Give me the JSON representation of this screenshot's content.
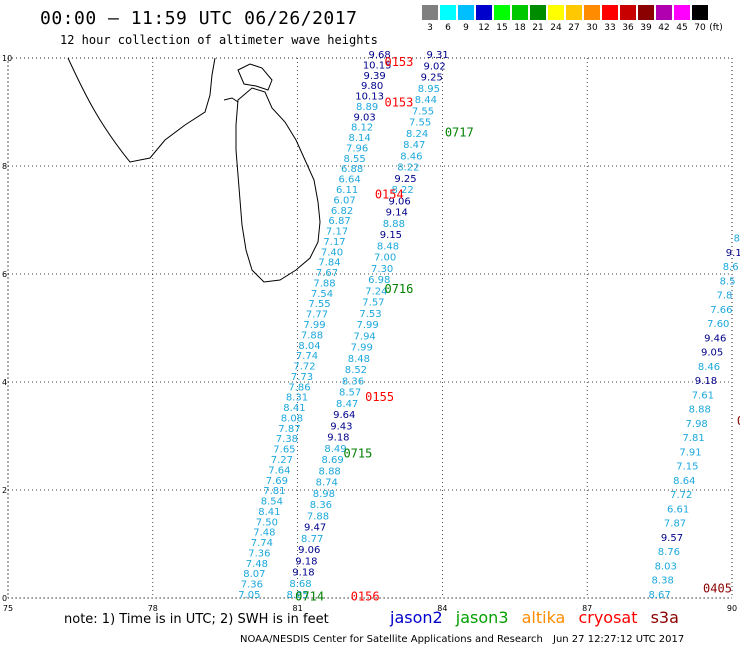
{
  "title": "00:00 – 11:59 UTC 06/26/2017",
  "subtitle": "12 hour collection of altimeter wave heights",
  "legend": {
    "unit": "(ft)",
    "entries": [
      {
        "label": "3",
        "color": "#808080"
      },
      {
        "label": "6",
        "color": "#00ffff"
      },
      {
        "label": "9",
        "color": "#00bfff"
      },
      {
        "label": "12",
        "color": "#0000cd"
      },
      {
        "label": "15",
        "color": "#00ff00"
      },
      {
        "label": "18",
        "color": "#00c800"
      },
      {
        "label": "21",
        "color": "#008c00"
      },
      {
        "label": "24",
        "color": "#ffff00"
      },
      {
        "label": "27",
        "color": "#ffc800"
      },
      {
        "label": "30",
        "color": "#ff8c00"
      },
      {
        "label": "33",
        "color": "#ff0000"
      },
      {
        "label": "36",
        "color": "#c80000"
      },
      {
        "label": "39",
        "color": "#8b0000"
      },
      {
        "label": "42",
        "color": "#b000b0"
      },
      {
        "label": "45",
        "color": "#ff00ff"
      },
      {
        "label": "70",
        "color": "#000000"
      }
    ]
  },
  "axes": {
    "lon_ticks": [
      "75",
      "78",
      "81",
      "84",
      "87",
      "90"
    ],
    "lat_ticks": [
      "0",
      "2",
      "4",
      "6",
      "8",
      "10"
    ]
  },
  "tracks": [
    {
      "lon_start": 80.0,
      "lat_start": 0.0,
      "lon_end": 82.7,
      "lat_end": 10.0,
      "rows": [
        {
          "t": "7.05",
          "c": "#1ca8dc",
          "lon": 80.2
        },
        {
          "t": "7.36",
          "c": "#1ca8dc",
          "lon": 80.2
        },
        {
          "t": "8.07",
          "c": "#1ca8dc",
          "lon": 80.2
        },
        {
          "t": "7.48",
          "c": "#1ca8dc",
          "lon": 80.2
        },
        {
          "t": "7.36",
          "c": "#1ca8dc",
          "lon": 80.2
        },
        {
          "t": "7.74",
          "c": "#1ca8dc",
          "lon": 80.2
        },
        {
          "t": "7.48",
          "c": "#1ca8dc",
          "lon": 80.2
        },
        {
          "t": "7.50",
          "c": "#1ca8dc",
          "lon": 80.2
        },
        {
          "t": "8.41",
          "c": "#1ca8dc",
          "lon": 80.2
        },
        {
          "t": "8.54",
          "c": "#1ca8dc",
          "lon": 80.2
        },
        {
          "t": "7.81",
          "c": "#1ca8dc",
          "lon": 80.2
        },
        {
          "t": "7.69",
          "c": "#1ca8dc",
          "lon": 80.2
        },
        {
          "t": "7.64",
          "c": "#1ca8dc",
          "lon": 80.2
        },
        {
          "t": "7.27",
          "c": "#1ca8dc",
          "lon": 80.2
        },
        {
          "t": "7.65",
          "c": "#1ca8dc",
          "lon": 80.2
        },
        {
          "t": "7.38",
          "c": "#1ca8dc",
          "lon": 80.2
        },
        {
          "t": "7.87",
          "c": "#1ca8dc",
          "lon": 80.2
        },
        {
          "t": "8.08",
          "c": "#1ca8dc",
          "lon": 80.2
        },
        {
          "t": "8.41",
          "c": "#1ca8dc",
          "lon": 80.2
        },
        {
          "t": "8.31",
          "c": "#1ca8dc",
          "lon": 80.2
        },
        {
          "t": "7.86",
          "c": "#1ca8dc",
          "lon": 80.2
        },
        {
          "t": "7.73",
          "c": "#1ca8dc",
          "lon": 80.2
        },
        {
          "t": "7.72",
          "c": "#1ca8dc",
          "lon": 80.2
        },
        {
          "t": "7.74",
          "c": "#1ca8dc",
          "lon": 80.2
        },
        {
          "t": "8.04",
          "c": "#1ca8dc",
          "lon": 80.2
        },
        {
          "t": "7.88",
          "c": "#1ca8dc",
          "lon": 80.2
        },
        {
          "t": "7.99",
          "c": "#1ca8dc",
          "lon": 80.2
        },
        {
          "t": "7.77",
          "c": "#1ca8dc",
          "lon": 80.2
        },
        {
          "t": "7.55",
          "c": "#1ca8dc",
          "lon": 80.2
        },
        {
          "t": "7.54",
          "c": "#1ca8dc",
          "lon": 80.2
        },
        {
          "t": "7.88",
          "c": "#1ca8dc",
          "lon": 80.2
        },
        {
          "t": "7.67",
          "c": "#1ca8dc",
          "lon": 80.2
        },
        {
          "t": "7.84",
          "c": "#1ca8dc",
          "lon": 80.2
        },
        {
          "t": "7.40",
          "c": "#1ca8dc",
          "lon": 80.2
        },
        {
          "t": "7.17",
          "c": "#1ca8dc",
          "lon": 80.2
        },
        {
          "t": "7.17",
          "c": "#1ca8dc",
          "lon": 80.2
        },
        {
          "t": "6.87",
          "c": "#1ca8dc",
          "lon": 80.2
        },
        {
          "t": "6.82",
          "c": "#1ca8dc",
          "lon": 80.2
        },
        {
          "t": "6.07",
          "c": "#1ca8dc",
          "lon": 80.2
        },
        {
          "t": "6.11",
          "c": "#1ca8dc",
          "lon": 80.2
        },
        {
          "t": "6.64",
          "c": "#1ca8dc",
          "lon": 80.2
        },
        {
          "t": "6.88",
          "c": "#1ca8dc",
          "lon": 80.2
        },
        {
          "t": "8.55",
          "c": "#1ca8dc",
          "lon": 80.2
        },
        {
          "t": "7.96",
          "c": "#1ca8dc",
          "lon": 80.2
        },
        {
          "t": "8.14",
          "c": "#1ca8dc",
          "lon": 80.2
        },
        {
          "t": "8.12",
          "c": "#1ca8dc",
          "lon": 80.2
        },
        {
          "t": "9.03",
          "c": "#00008b",
          "lon": 80.2
        },
        {
          "t": "8.89",
          "c": "#1ca8dc",
          "lon": 80.2
        },
        {
          "t": "10.13",
          "c": "#00008b",
          "lon": 80.2
        },
        {
          "t": "9.80",
          "c": "#00008b",
          "lon": 80.2
        },
        {
          "t": "9.39",
          "c": "#00008b",
          "lon": 80.2
        },
        {
          "t": "10.15",
          "c": "#00008b",
          "lon": 80.2
        },
        {
          "t": "9.68",
          "c": "#00008b",
          "lon": 80.2
        }
      ]
    },
    {
      "lon_start": 81.0,
      "lat_start": 0.0,
      "lon_end": 83.9,
      "lat_end": 10.0,
      "rows": [
        {
          "t": "8.85",
          "c": "#1ca8dc"
        },
        {
          "t": "8.68",
          "c": "#1ca8dc"
        },
        {
          "t": "9.18",
          "c": "#00008b"
        },
        {
          "t": "9.18",
          "c": "#00008b"
        },
        {
          "t": "9.06",
          "c": "#00008b"
        },
        {
          "t": "8.77",
          "c": "#1ca8dc"
        },
        {
          "t": "9.47",
          "c": "#00008b"
        },
        {
          "t": "7.88",
          "c": "#1ca8dc"
        },
        {
          "t": "8.36",
          "c": "#1ca8dc"
        },
        {
          "t": "8.98",
          "c": "#1ca8dc"
        },
        {
          "t": "8.74",
          "c": "#1ca8dc"
        },
        {
          "t": "8.88",
          "c": "#1ca8dc"
        },
        {
          "t": "8.69",
          "c": "#1ca8dc"
        },
        {
          "t": "8.49",
          "c": "#1ca8dc"
        },
        {
          "t": "9.18",
          "c": "#00008b"
        },
        {
          "t": "9.43",
          "c": "#00008b"
        },
        {
          "t": "9.64",
          "c": "#00008b"
        },
        {
          "t": "8.47",
          "c": "#1ca8dc"
        },
        {
          "t": "8.57",
          "c": "#1ca8dc"
        },
        {
          "t": "8.36",
          "c": "#1ca8dc"
        },
        {
          "t": "8.52",
          "c": "#1ca8dc"
        },
        {
          "t": "8.48",
          "c": "#1ca8dc"
        },
        {
          "t": "7.99",
          "c": "#1ca8dc"
        },
        {
          "t": "7.94",
          "c": "#1ca8dc"
        },
        {
          "t": "7.99",
          "c": "#1ca8dc"
        },
        {
          "t": "7.53",
          "c": "#1ca8dc"
        },
        {
          "t": "7.57",
          "c": "#1ca8dc"
        },
        {
          "t": "7.24",
          "c": "#1ca8dc"
        },
        {
          "t": "6.98",
          "c": "#1ca8dc"
        },
        {
          "t": "7.30",
          "c": "#1ca8dc"
        },
        {
          "t": "7.00",
          "c": "#1ca8dc"
        },
        {
          "t": "8.48",
          "c": "#1ca8dc"
        },
        {
          "t": "9.15",
          "c": "#00008b"
        },
        {
          "t": "8.88",
          "c": "#1ca8dc"
        },
        {
          "t": "9.14",
          "c": "#00008b"
        },
        {
          "t": "9.06",
          "c": "#00008b"
        },
        {
          "t": "8.22",
          "c": "#1ca8dc"
        },
        {
          "t": "9.25",
          "c": "#00008b"
        },
        {
          "t": "8.22",
          "c": "#1ca8dc"
        },
        {
          "t": "8.46",
          "c": "#1ca8dc"
        },
        {
          "t": "8.47",
          "c": "#1ca8dc"
        },
        {
          "t": "8.24",
          "c": "#1ca8dc"
        },
        {
          "t": "7.55",
          "c": "#1ca8dc"
        },
        {
          "t": "7.55",
          "c": "#1ca8dc"
        },
        {
          "t": "8.44",
          "c": "#1ca8dc"
        },
        {
          "t": "8.95",
          "c": "#1ca8dc"
        },
        {
          "t": "9.25",
          "c": "#00008b"
        },
        {
          "t": "9.02",
          "c": "#00008b"
        },
        {
          "t": "9.31",
          "c": "#00008b"
        }
      ]
    },
    {
      "lon_start": 88.5,
      "lat_start": 0.0,
      "lon_end": 90.1,
      "lat_end": 6.6,
      "rows": [
        {
          "t": "8.67",
          "c": "#1ca8dc"
        },
        {
          "t": "8.38",
          "c": "#1ca8dc"
        },
        {
          "t": "8.03",
          "c": "#1ca8dc"
        },
        {
          "t": "8.76",
          "c": "#1ca8dc"
        },
        {
          "t": "9.57",
          "c": "#00008b"
        },
        {
          "t": "7.87",
          "c": "#1ca8dc"
        },
        {
          "t": "6.61",
          "c": "#1ca8dc"
        },
        {
          "t": "7.72",
          "c": "#1ca8dc"
        },
        {
          "t": "8.64",
          "c": "#1ca8dc"
        },
        {
          "t": "7.15",
          "c": "#1ca8dc"
        },
        {
          "t": "7.91",
          "c": "#1ca8dc"
        },
        {
          "t": "7.81",
          "c": "#1ca8dc"
        },
        {
          "t": "7.98",
          "c": "#1ca8dc"
        },
        {
          "t": "8.88",
          "c": "#1ca8dc"
        },
        {
          "t": "7.61",
          "c": "#1ca8dc"
        },
        {
          "t": "9.18",
          "c": "#00008b"
        },
        {
          "t": "8.46",
          "c": "#1ca8dc"
        },
        {
          "t": "9.05",
          "c": "#00008b"
        },
        {
          "t": "9.46",
          "c": "#00008b"
        },
        {
          "t": "7.60",
          "c": "#1ca8dc"
        },
        {
          "t": "7.66",
          "c": "#1ca8dc"
        },
        {
          "t": "7.8",
          "c": "#1ca8dc"
        },
        {
          "t": "8.5",
          "c": "#1ca8dc"
        },
        {
          "t": "8.6",
          "c": "#1ca8dc"
        },
        {
          "t": "9.1",
          "c": "#00008b"
        },
        {
          "t": "8",
          "c": "#1ca8dc"
        }
      ]
    }
  ],
  "time_labels": [
    {
      "t": "0153",
      "c": "#ff0000",
      "lon": 82.8,
      "lat": 9.85
    },
    {
      "t": "0153",
      "c": "#ff0000",
      "lon": 82.8,
      "lat": 9.1
    },
    {
      "t": "0717",
      "c": "#008000",
      "lon": 84.05,
      "lat": 8.55
    },
    {
      "t": "0154",
      "c": "#ff0000",
      "lon": 82.6,
      "lat": 7.4
    },
    {
      "t": "0716",
      "c": "#008000",
      "lon": 82.8,
      "lat": 5.65
    },
    {
      "t": "0155",
      "c": "#ff0000",
      "lon": 82.4,
      "lat": 3.65
    },
    {
      "t": "0715",
      "c": "#008000",
      "lon": 81.95,
      "lat": 2.6
    },
    {
      "t": "0714",
      "c": "#008000",
      "lon": 80.95,
      "lat": -0.05
    },
    {
      "t": "0156",
      "c": "#ff0000",
      "lon": 82.1,
      "lat": -0.05
    },
    {
      "t": "0405",
      "c": "#8b0000",
      "lon": 89.4,
      "lat": 0.1
    },
    {
      "t": "0",
      "c": "#8b0000",
      "lon": 90.1,
      "lat": 3.2
    }
  ],
  "note": "note: 1) Time is in UTC; 2) SWH is in feet",
  "missions": [
    {
      "name": "jason2",
      "color": "#0000cd"
    },
    {
      "name": "jason3",
      "color": "#00a000"
    },
    {
      "name": "altika",
      "color": "#ff8c00"
    },
    {
      "name": "cryosat",
      "color": "#ff0000"
    },
    {
      "name": "s3a",
      "color": "#8b0000"
    }
  ],
  "credit": "NOAA/NESDIS Center for Satellite Applications and Research",
  "timestamp": "Jun 27 12:27:12 UTC 2017"
}
